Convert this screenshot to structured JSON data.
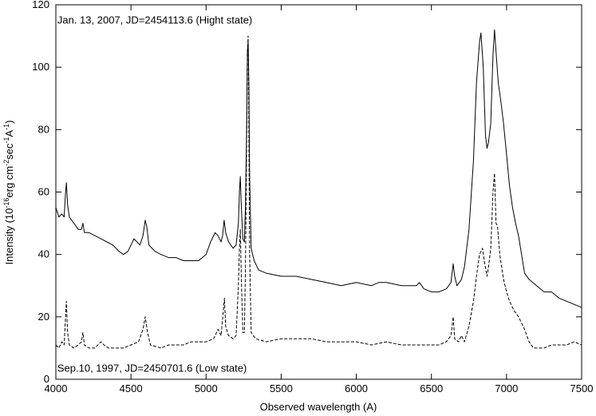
{
  "chart_data": {
    "type": "line",
    "title": "",
    "xlabel": "Observed wavelength (A)",
    "ylabel": {
      "prefix": "Intensity (10",
      "exp1": "-16",
      "mid1": "erg cm",
      "exp2": "-2",
      "mid2": "sec",
      "exp3": "-1",
      "mid3": "A",
      "exp4": "-1",
      "suffix": ")"
    },
    "xlim": [
      4000,
      7500
    ],
    "ylim": [
      0,
      120
    ],
    "xticks": [
      4000,
      4500,
      5000,
      5500,
      6000,
      6500,
      7000,
      7500
    ],
    "yticks": [
      0,
      20,
      40,
      60,
      80,
      100,
      120
    ],
    "grid": false,
    "annotations": [
      {
        "text": "Jan. 13, 2007, JD=2454113.6 (Hight state)",
        "x": 4010,
        "y": 115
      },
      {
        "text": "Sep.10, 1997, JD=2450701.6  (Low state)",
        "x": 4010,
        "y": 3.5
      }
    ],
    "series": [
      {
        "style": "solid",
        "points": [
          [
            4000,
            55
          ],
          [
            4020,
            52
          ],
          [
            4040,
            53
          ],
          [
            4055,
            52
          ],
          [
            4065,
            60
          ],
          [
            4070,
            63
          ],
          [
            4078,
            56
          ],
          [
            4090,
            52
          ],
          [
            4120,
            50
          ],
          [
            4150,
            48
          ],
          [
            4170,
            48
          ],
          [
            4180,
            50
          ],
          [
            4190,
            47
          ],
          [
            4220,
            47
          ],
          [
            4260,
            46
          ],
          [
            4300,
            45
          ],
          [
            4340,
            44
          ],
          [
            4380,
            43
          ],
          [
            4420,
            41
          ],
          [
            4450,
            40
          ],
          [
            4480,
            41
          ],
          [
            4500,
            43
          ],
          [
            4520,
            45
          ],
          [
            4540,
            44
          ],
          [
            4560,
            43
          ],
          [
            4580,
            46
          ],
          [
            4595,
            51
          ],
          [
            4605,
            49
          ],
          [
            4620,
            43
          ],
          [
            4660,
            41
          ],
          [
            4700,
            40
          ],
          [
            4750,
            39
          ],
          [
            4800,
            39
          ],
          [
            4850,
            38
          ],
          [
            4900,
            38
          ],
          [
            4950,
            38
          ],
          [
            5000,
            40
          ],
          [
            5030,
            44
          ],
          [
            5060,
            47
          ],
          [
            5080,
            46
          ],
          [
            5100,
            44
          ],
          [
            5110,
            46
          ],
          [
            5120,
            51
          ],
          [
            5130,
            47
          ],
          [
            5150,
            44
          ],
          [
            5180,
            42
          ],
          [
            5200,
            43
          ],
          [
            5215,
            50
          ],
          [
            5222,
            60
          ],
          [
            5228,
            65
          ],
          [
            5235,
            55
          ],
          [
            5245,
            45
          ],
          [
            5255,
            44
          ],
          [
            5262,
            55
          ],
          [
            5270,
            80
          ],
          [
            5275,
            105
          ],
          [
            5280,
            108
          ],
          [
            5285,
            95
          ],
          [
            5290,
            65
          ],
          [
            5300,
            42
          ],
          [
            5320,
            38
          ],
          [
            5350,
            35
          ],
          [
            5400,
            34
          ],
          [
            5500,
            33
          ],
          [
            5600,
            33
          ],
          [
            5700,
            32
          ],
          [
            5800,
            31
          ],
          [
            5900,
            30
          ],
          [
            6000,
            31
          ],
          [
            6100,
            30
          ],
          [
            6150,
            31
          ],
          [
            6200,
            31
          ],
          [
            6300,
            30
          ],
          [
            6400,
            30
          ],
          [
            6420,
            31
          ],
          [
            6450,
            29
          ],
          [
            6500,
            28
          ],
          [
            6550,
            28
          ],
          [
            6600,
            29
          ],
          [
            6630,
            31
          ],
          [
            6645,
            37
          ],
          [
            6655,
            33
          ],
          [
            6670,
            30
          ],
          [
            6700,
            32
          ],
          [
            6720,
            36
          ],
          [
            6750,
            48
          ],
          [
            6780,
            70
          ],
          [
            6800,
            95
          ],
          [
            6820,
            108
          ],
          [
            6830,
            111
          ],
          [
            6845,
            100
          ],
          [
            6860,
            78
          ],
          [
            6870,
            74
          ],
          [
            6880,
            76
          ],
          [
            6895,
            82
          ],
          [
            6910,
            104
          ],
          [
            6920,
            112
          ],
          [
            6930,
            105
          ],
          [
            6945,
            95
          ],
          [
            6960,
            90
          ],
          [
            6980,
            82
          ],
          [
            7000,
            72
          ],
          [
            7020,
            62
          ],
          [
            7040,
            55
          ],
          [
            7060,
            50
          ],
          [
            7080,
            46
          ],
          [
            7100,
            40
          ],
          [
            7120,
            34
          ],
          [
            7150,
            32
          ],
          [
            7200,
            30
          ],
          [
            7250,
            28
          ],
          [
            7300,
            28
          ],
          [
            7350,
            26
          ],
          [
            7400,
            25
          ],
          [
            7450,
            24
          ],
          [
            7500,
            23
          ]
        ]
      },
      {
        "style": "dashed",
        "points": [
          [
            4000,
            11
          ],
          [
            4020,
            10
          ],
          [
            4040,
            12
          ],
          [
            4055,
            11
          ],
          [
            4065,
            20
          ],
          [
            4070,
            25
          ],
          [
            4078,
            15
          ],
          [
            4090,
            11
          ],
          [
            4120,
            10
          ],
          [
            4150,
            11
          ],
          [
            4170,
            12
          ],
          [
            4180,
            15
          ],
          [
            4190,
            11
          ],
          [
            4220,
            10
          ],
          [
            4260,
            10
          ],
          [
            4300,
            12
          ],
          [
            4320,
            11
          ],
          [
            4350,
            10
          ],
          [
            4400,
            10
          ],
          [
            4450,
            10
          ],
          [
            4500,
            11
          ],
          [
            4550,
            12
          ],
          [
            4580,
            16
          ],
          [
            4595,
            20
          ],
          [
            4610,
            15
          ],
          [
            4630,
            11
          ],
          [
            4700,
            10
          ],
          [
            4750,
            11
          ],
          [
            4800,
            11
          ],
          [
            4850,
            11
          ],
          [
            4900,
            12
          ],
          [
            4950,
            12
          ],
          [
            5000,
            12
          ],
          [
            5050,
            13
          ],
          [
            5080,
            16
          ],
          [
            5100,
            14
          ],
          [
            5115,
            22
          ],
          [
            5122,
            26
          ],
          [
            5130,
            17
          ],
          [
            5150,
            14
          ],
          [
            5180,
            13
          ],
          [
            5200,
            14
          ],
          [
            5215,
            30
          ],
          [
            5222,
            42
          ],
          [
            5228,
            48
          ],
          [
            5235,
            32
          ],
          [
            5245,
            15
          ],
          [
            5255,
            15
          ],
          [
            5262,
            35
          ],
          [
            5270,
            75
          ],
          [
            5275,
            105
          ],
          [
            5280,
            110
          ],
          [
            5285,
            80
          ],
          [
            5290,
            40
          ],
          [
            5300,
            15
          ],
          [
            5330,
            13
          ],
          [
            5400,
            12
          ],
          [
            5500,
            13
          ],
          [
            5600,
            13
          ],
          [
            5700,
            13
          ],
          [
            5800,
            12
          ],
          [
            5900,
            12
          ],
          [
            6000,
            12
          ],
          [
            6100,
            11
          ],
          [
            6200,
            12
          ],
          [
            6300,
            11
          ],
          [
            6400,
            11
          ],
          [
            6500,
            11
          ],
          [
            6550,
            11
          ],
          [
            6600,
            12
          ],
          [
            6630,
            14
          ],
          [
            6645,
            20
          ],
          [
            6655,
            13
          ],
          [
            6680,
            12
          ],
          [
            6700,
            14
          ],
          [
            6720,
            12
          ],
          [
            6750,
            17
          ],
          [
            6780,
            25
          ],
          [
            6800,
            33
          ],
          [
            6820,
            40
          ],
          [
            6840,
            42
          ],
          [
            6855,
            37
          ],
          [
            6870,
            33
          ],
          [
            6880,
            36
          ],
          [
            6895,
            42
          ],
          [
            6910,
            60
          ],
          [
            6920,
            66
          ],
          [
            6930,
            50
          ],
          [
            6940,
            49
          ],
          [
            6955,
            40
          ],
          [
            6980,
            32
          ],
          [
            7000,
            28
          ],
          [
            7020,
            25
          ],
          [
            7050,
            22
          ],
          [
            7080,
            20
          ],
          [
            7100,
            18
          ],
          [
            7120,
            16
          ],
          [
            7150,
            12
          ],
          [
            7180,
            10
          ],
          [
            7200,
            10
          ],
          [
            7250,
            10
          ],
          [
            7300,
            11
          ],
          [
            7350,
            11
          ],
          [
            7400,
            11
          ],
          [
            7450,
            12
          ],
          [
            7500,
            11
          ]
        ]
      }
    ]
  }
}
